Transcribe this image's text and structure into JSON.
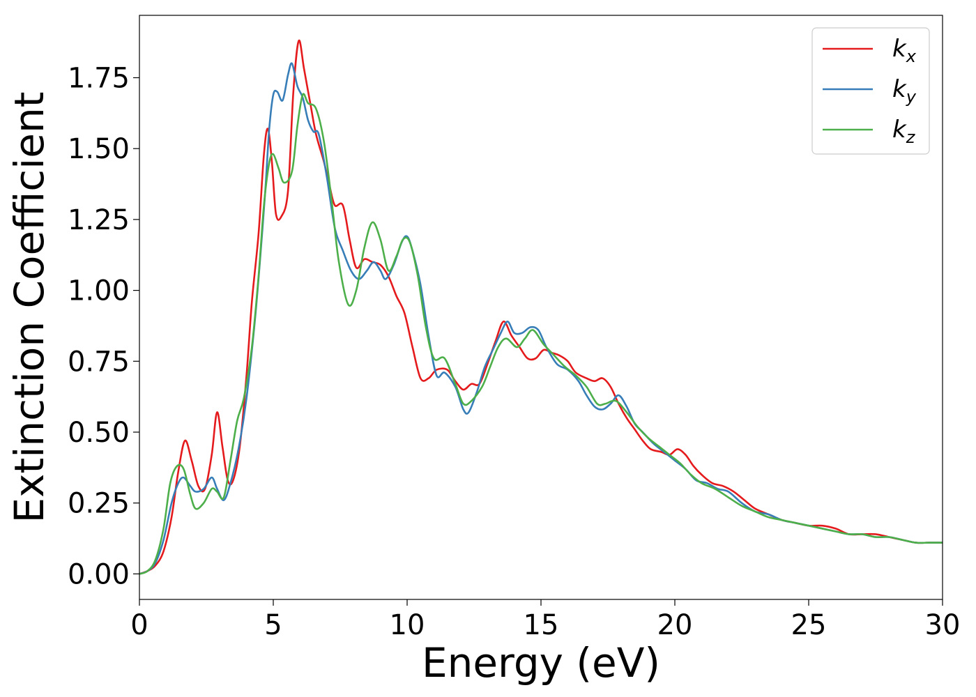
{
  "chart_data": {
    "type": "line",
    "xlabel": "Energy (eV)",
    "ylabel": "Extinction Coefficient",
    "xlim": [
      0,
      30
    ],
    "ylim": [
      -0.09,
      1.97
    ],
    "xticks": [
      "0",
      "5",
      "10",
      "15",
      "20",
      "25",
      "30"
    ],
    "yticks": [
      "0.00",
      "0.25",
      "0.50",
      "0.75",
      "1.00",
      "1.25",
      "1.50",
      "1.75"
    ],
    "grid": false,
    "legend_position": "top-right",
    "series": [
      {
        "name": "kx",
        "name_main": "k",
        "name_sub": "x",
        "color": "#e41a1c",
        "points": [
          [
            0,
            0
          ],
          [
            0.3,
            0.01
          ],
          [
            0.6,
            0.03
          ],
          [
            0.9,
            0.08
          ],
          [
            1.2,
            0.2
          ],
          [
            1.45,
            0.36
          ],
          [
            1.7,
            0.47
          ],
          [
            1.95,
            0.4
          ],
          [
            2.2,
            0.31
          ],
          [
            2.45,
            0.3
          ],
          [
            2.7,
            0.42
          ],
          [
            2.9,
            0.57
          ],
          [
            3.1,
            0.45
          ],
          [
            3.3,
            0.33
          ],
          [
            3.5,
            0.33
          ],
          [
            3.75,
            0.45
          ],
          [
            4.0,
            0.7
          ],
          [
            4.2,
            0.96
          ],
          [
            4.45,
            1.2
          ],
          [
            4.65,
            1.48
          ],
          [
            4.8,
            1.57
          ],
          [
            4.95,
            1.45
          ],
          [
            5.1,
            1.27
          ],
          [
            5.3,
            1.26
          ],
          [
            5.55,
            1.35
          ],
          [
            5.75,
            1.7
          ],
          [
            5.95,
            1.88
          ],
          [
            6.15,
            1.78
          ],
          [
            6.4,
            1.65
          ],
          [
            6.6,
            1.55
          ],
          [
            6.9,
            1.45
          ],
          [
            7.1,
            1.37
          ],
          [
            7.3,
            1.3
          ],
          [
            7.6,
            1.3
          ],
          [
            7.85,
            1.18
          ],
          [
            8.1,
            1.08
          ],
          [
            8.4,
            1.11
          ],
          [
            8.7,
            1.1
          ],
          [
            9.0,
            1.09
          ],
          [
            9.3,
            1.05
          ],
          [
            9.6,
            0.98
          ],
          [
            9.9,
            0.92
          ],
          [
            10.2,
            0.8
          ],
          [
            10.5,
            0.69
          ],
          [
            10.8,
            0.69
          ],
          [
            11.1,
            0.72
          ],
          [
            11.5,
            0.72
          ],
          [
            11.8,
            0.68
          ],
          [
            12.1,
            0.65
          ],
          [
            12.4,
            0.67
          ],
          [
            12.7,
            0.67
          ],
          [
            13.0,
            0.74
          ],
          [
            13.3,
            0.82
          ],
          [
            13.6,
            0.89
          ],
          [
            13.9,
            0.84
          ],
          [
            14.2,
            0.8
          ],
          [
            14.5,
            0.76
          ],
          [
            14.8,
            0.76
          ],
          [
            15.1,
            0.79
          ],
          [
            15.4,
            0.78
          ],
          [
            15.7,
            0.77
          ],
          [
            16.0,
            0.75
          ],
          [
            16.3,
            0.71
          ],
          [
            16.7,
            0.69
          ],
          [
            17.0,
            0.68
          ],
          [
            17.3,
            0.69
          ],
          [
            17.6,
            0.66
          ],
          [
            17.9,
            0.6
          ],
          [
            18.2,
            0.55
          ],
          [
            18.5,
            0.51
          ],
          [
            18.8,
            0.47
          ],
          [
            19.1,
            0.44
          ],
          [
            19.5,
            0.43
          ],
          [
            19.8,
            0.42
          ],
          [
            20.1,
            0.44
          ],
          [
            20.4,
            0.42
          ],
          [
            20.7,
            0.38
          ],
          [
            21.0,
            0.35
          ],
          [
            21.4,
            0.32
          ],
          [
            21.8,
            0.31
          ],
          [
            22.2,
            0.29
          ],
          [
            22.6,
            0.26
          ],
          [
            23.0,
            0.23
          ],
          [
            23.5,
            0.21
          ],
          [
            24.0,
            0.19
          ],
          [
            24.5,
            0.18
          ],
          [
            25.0,
            0.17
          ],
          [
            25.5,
            0.17
          ],
          [
            26.0,
            0.16
          ],
          [
            26.5,
            0.14
          ],
          [
            27.0,
            0.14
          ],
          [
            27.5,
            0.14
          ],
          [
            28.0,
            0.13
          ],
          [
            28.5,
            0.12
          ],
          [
            29.0,
            0.11
          ],
          [
            29.5,
            0.11
          ],
          [
            30.0,
            0.11
          ]
        ]
      },
      {
        "name": "ky",
        "name_main": "k",
        "name_sub": "y",
        "color": "#377eb8",
        "points": [
          [
            0,
            0
          ],
          [
            0.3,
            0.01
          ],
          [
            0.6,
            0.04
          ],
          [
            0.9,
            0.12
          ],
          [
            1.2,
            0.25
          ],
          [
            1.45,
            0.32
          ],
          [
            1.65,
            0.34
          ],
          [
            1.9,
            0.31
          ],
          [
            2.1,
            0.29
          ],
          [
            2.4,
            0.3
          ],
          [
            2.7,
            0.34
          ],
          [
            2.9,
            0.3
          ],
          [
            3.15,
            0.26
          ],
          [
            3.4,
            0.32
          ],
          [
            3.7,
            0.44
          ],
          [
            4.0,
            0.62
          ],
          [
            4.3,
            0.88
          ],
          [
            4.5,
            1.1
          ],
          [
            4.7,
            1.35
          ],
          [
            4.85,
            1.57
          ],
          [
            5.0,
            1.69
          ],
          [
            5.15,
            1.7
          ],
          [
            5.35,
            1.67
          ],
          [
            5.55,
            1.76
          ],
          [
            5.7,
            1.8
          ],
          [
            5.9,
            1.72
          ],
          [
            6.1,
            1.68
          ],
          [
            6.3,
            1.6
          ],
          [
            6.5,
            1.56
          ],
          [
            6.7,
            1.55
          ],
          [
            7.0,
            1.4
          ],
          [
            7.3,
            1.22
          ],
          [
            7.6,
            1.14
          ],
          [
            7.9,
            1.07
          ],
          [
            8.2,
            1.04
          ],
          [
            8.5,
            1.07
          ],
          [
            8.75,
            1.1
          ],
          [
            9.0,
            1.07
          ],
          [
            9.2,
            1.04
          ],
          [
            9.5,
            1.09
          ],
          [
            9.8,
            1.17
          ],
          [
            10.0,
            1.19
          ],
          [
            10.2,
            1.14
          ],
          [
            10.5,
            1.02
          ],
          [
            10.8,
            0.84
          ],
          [
            11.1,
            0.7
          ],
          [
            11.4,
            0.71
          ],
          [
            11.8,
            0.66
          ],
          [
            12.1,
            0.58
          ],
          [
            12.3,
            0.57
          ],
          [
            12.6,
            0.64
          ],
          [
            12.9,
            0.73
          ],
          [
            13.2,
            0.79
          ],
          [
            13.5,
            0.85
          ],
          [
            13.75,
            0.89
          ],
          [
            14.0,
            0.85
          ],
          [
            14.3,
            0.85
          ],
          [
            14.6,
            0.87
          ],
          [
            14.9,
            0.86
          ],
          [
            15.2,
            0.8
          ],
          [
            15.6,
            0.74
          ],
          [
            16.0,
            0.72
          ],
          [
            16.4,
            0.68
          ],
          [
            16.7,
            0.63
          ],
          [
            17.0,
            0.59
          ],
          [
            17.3,
            0.58
          ],
          [
            17.6,
            0.6
          ],
          [
            17.9,
            0.63
          ],
          [
            18.2,
            0.59
          ],
          [
            18.5,
            0.53
          ],
          [
            18.8,
            0.5
          ],
          [
            19.2,
            0.46
          ],
          [
            19.6,
            0.43
          ],
          [
            20.0,
            0.4
          ],
          [
            20.4,
            0.37
          ],
          [
            20.8,
            0.33
          ],
          [
            21.2,
            0.32
          ],
          [
            21.6,
            0.3
          ],
          [
            22.0,
            0.29
          ],
          [
            22.5,
            0.25
          ],
          [
            23.0,
            0.22
          ],
          [
            23.5,
            0.21
          ],
          [
            24.0,
            0.19
          ],
          [
            24.5,
            0.18
          ],
          [
            25.0,
            0.17
          ],
          [
            25.5,
            0.16
          ],
          [
            26.0,
            0.15
          ],
          [
            26.5,
            0.14
          ],
          [
            27.0,
            0.14
          ],
          [
            27.5,
            0.13
          ],
          [
            28.0,
            0.13
          ],
          [
            28.5,
            0.12
          ],
          [
            29.0,
            0.11
          ],
          [
            29.5,
            0.11
          ],
          [
            30.0,
            0.11
          ]
        ]
      },
      {
        "name": "kz",
        "name_main": "k",
        "name_sub": "z",
        "color": "#4daf4a",
        "points": [
          [
            0,
            0
          ],
          [
            0.3,
            0.01
          ],
          [
            0.6,
            0.05
          ],
          [
            0.9,
            0.16
          ],
          [
            1.15,
            0.32
          ],
          [
            1.4,
            0.38
          ],
          [
            1.65,
            0.37
          ],
          [
            1.9,
            0.28
          ],
          [
            2.1,
            0.23
          ],
          [
            2.4,
            0.25
          ],
          [
            2.7,
            0.3
          ],
          [
            2.9,
            0.29
          ],
          [
            3.15,
            0.27
          ],
          [
            3.4,
            0.4
          ],
          [
            3.65,
            0.54
          ],
          [
            3.9,
            0.62
          ],
          [
            4.2,
            0.8
          ],
          [
            4.45,
            1.05
          ],
          [
            4.65,
            1.3
          ],
          [
            4.85,
            1.45
          ],
          [
            5.0,
            1.48
          ],
          [
            5.2,
            1.43
          ],
          [
            5.4,
            1.38
          ],
          [
            5.7,
            1.42
          ],
          [
            5.9,
            1.58
          ],
          [
            6.1,
            1.69
          ],
          [
            6.3,
            1.66
          ],
          [
            6.6,
            1.64
          ],
          [
            6.9,
            1.52
          ],
          [
            7.2,
            1.3
          ],
          [
            7.45,
            1.1
          ],
          [
            7.8,
            0.95
          ],
          [
            8.1,
            1.0
          ],
          [
            8.4,
            1.15
          ],
          [
            8.7,
            1.24
          ],
          [
            9.0,
            1.18
          ],
          [
            9.3,
            1.07
          ],
          [
            9.6,
            1.12
          ],
          [
            9.85,
            1.18
          ],
          [
            10.1,
            1.17
          ],
          [
            10.4,
            1.05
          ],
          [
            10.7,
            0.87
          ],
          [
            11.0,
            0.76
          ],
          [
            11.4,
            0.76
          ],
          [
            11.8,
            0.67
          ],
          [
            12.1,
            0.6
          ],
          [
            12.4,
            0.61
          ],
          [
            12.8,
            0.66
          ],
          [
            13.1,
            0.73
          ],
          [
            13.4,
            0.8
          ],
          [
            13.7,
            0.83
          ],
          [
            14.1,
            0.8
          ],
          [
            14.4,
            0.83
          ],
          [
            14.7,
            0.86
          ],
          [
            15.1,
            0.81
          ],
          [
            15.5,
            0.77
          ],
          [
            15.9,
            0.73
          ],
          [
            16.3,
            0.7
          ],
          [
            16.7,
            0.66
          ],
          [
            17.1,
            0.6
          ],
          [
            17.4,
            0.6
          ],
          [
            17.8,
            0.61
          ],
          [
            18.2,
            0.57
          ],
          [
            18.6,
            0.52
          ],
          [
            19.0,
            0.48
          ],
          [
            19.4,
            0.45
          ],
          [
            19.8,
            0.42
          ],
          [
            20.2,
            0.39
          ],
          [
            20.6,
            0.35
          ],
          [
            21.0,
            0.32
          ],
          [
            21.5,
            0.3
          ],
          [
            22.0,
            0.27
          ],
          [
            22.5,
            0.24
          ],
          [
            23.0,
            0.22
          ],
          [
            23.5,
            0.2
          ],
          [
            24.0,
            0.19
          ],
          [
            24.5,
            0.18
          ],
          [
            25.0,
            0.17
          ],
          [
            25.5,
            0.16
          ],
          [
            26.0,
            0.15
          ],
          [
            26.5,
            0.14
          ],
          [
            27.0,
            0.14
          ],
          [
            27.5,
            0.13
          ],
          [
            28.0,
            0.13
          ],
          [
            28.5,
            0.12
          ],
          [
            29.0,
            0.11
          ],
          [
            29.5,
            0.11
          ],
          [
            30.0,
            0.11
          ]
        ]
      }
    ]
  }
}
